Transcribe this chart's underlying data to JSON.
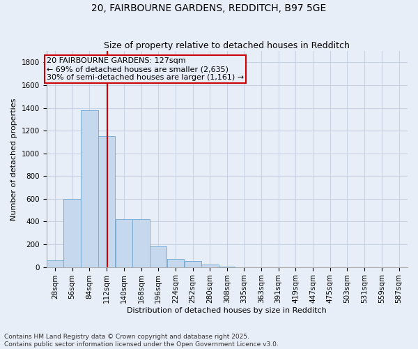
{
  "title": "20, FAIRBOURNE GARDENS, REDDITCH, B97 5GE",
  "subtitle": "Size of property relative to detached houses in Redditch",
  "xlabel": "Distribution of detached houses by size in Redditch",
  "ylabel": "Number of detached properties",
  "bin_edges": [
    28,
    56,
    84,
    112,
    140,
    168,
    196,
    224,
    252,
    280,
    308,
    335,
    363,
    391,
    419,
    447,
    475,
    503,
    531,
    559,
    587
  ],
  "bar_values": [
    60,
    600,
    1380,
    1150,
    420,
    420,
    180,
    70,
    50,
    20,
    5,
    0,
    0,
    0,
    0,
    0,
    0,
    0,
    0,
    0
  ],
  "bar_color": "#c5d8ee",
  "bar_edge_color": "#7aadd4",
  "grid_color": "#c8d4e4",
  "background_color": "#e8eef8",
  "property_size": 127,
  "property_line_color": "#cc0000",
  "annotation_text": "20 FAIRBOURNE GARDENS: 127sqm\n← 69% of detached houses are smaller (2,635)\n30% of semi-detached houses are larger (1,161) →",
  "annotation_box_color": "#cc0000",
  "ylim": [
    0,
    1900
  ],
  "yticks": [
    0,
    200,
    400,
    600,
    800,
    1000,
    1200,
    1400,
    1600,
    1800
  ],
  "tick_labels": [
    "28sqm",
    "56sqm",
    "84sqm",
    "112sqm",
    "140sqm",
    "168sqm",
    "196sqm",
    "224sqm",
    "252sqm",
    "280sqm",
    "308sqm",
    "335sqm",
    "363sqm",
    "391sqm",
    "419sqm",
    "447sqm",
    "475sqm",
    "503sqm",
    "531sqm",
    "559sqm",
    "587sqm"
  ],
  "footer_text": "Contains HM Land Registry data © Crown copyright and database right 2025.\nContains public sector information licensed under the Open Government Licence v3.0.",
  "title_fontsize": 10,
  "subtitle_fontsize": 9,
  "label_fontsize": 8,
  "tick_fontsize": 7.5,
  "annotation_fontsize": 8,
  "footer_fontsize": 6.5
}
